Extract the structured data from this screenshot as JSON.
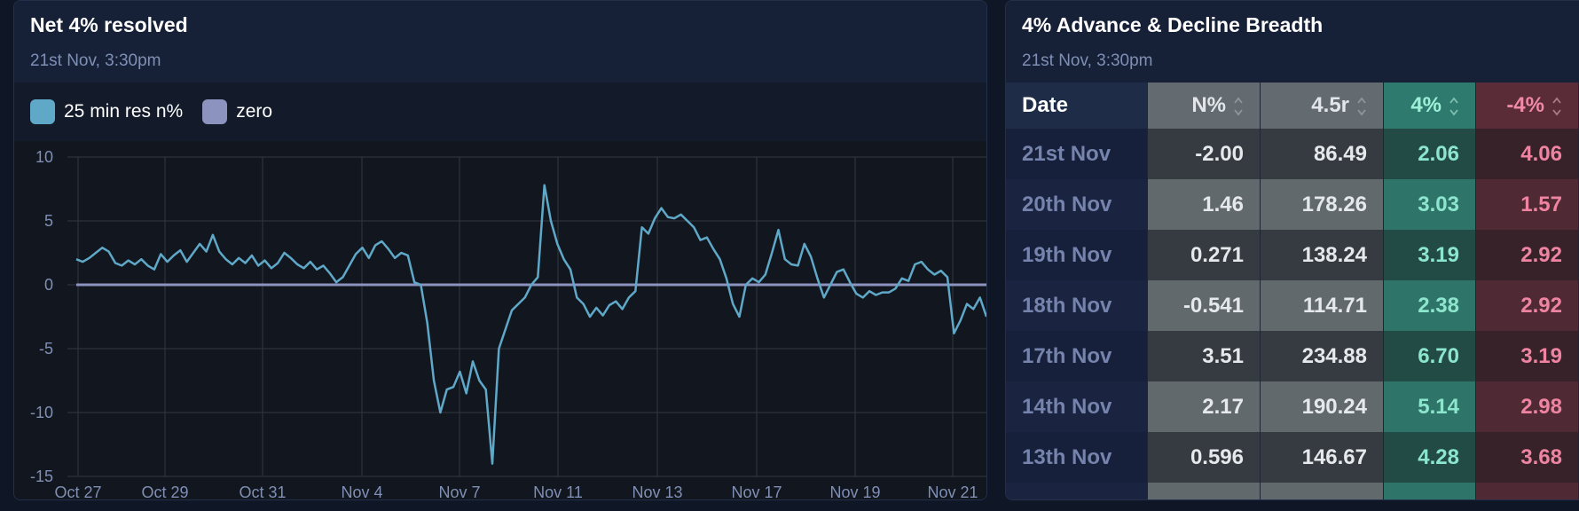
{
  "colors": {
    "line": "#5fa8c8",
    "zero": "#8c93be",
    "grid": "#323843",
    "tick": "#7f8fb5"
  },
  "left_panel": {
    "title": "Net 4% resolved",
    "subtitle": "21st Nov, 3:30pm",
    "legend": [
      {
        "label": "25 min res n%",
        "color": "#5fa8c8"
      },
      {
        "label": "zero",
        "color": "#8c93be"
      }
    ]
  },
  "chart_data": {
    "type": "line",
    "title": "Net 4% resolved",
    "ylim": [
      -15,
      10
    ],
    "yticks": [
      10,
      5,
      0,
      -5,
      -10,
      -15
    ],
    "xticks": [
      "Oct 27",
      "Oct 29",
      "Oct 31",
      "Nov 4",
      "Nov 7",
      "Nov 11",
      "Nov 13",
      "Nov 17",
      "Nov 19",
      "Nov 21"
    ],
    "grid": true,
    "legend_position": "top-left",
    "series": [
      {
        "name": "25 min res n%",
        "values": [
          2.0,
          1.8,
          2.1,
          2.5,
          2.9,
          2.6,
          1.7,
          1.5,
          1.9,
          1.6,
          2.0,
          1.5,
          1.2,
          2.4,
          1.8,
          2.3,
          2.7,
          1.8,
          2.5,
          3.2,
          2.6,
          3.9,
          2.6,
          2.0,
          1.6,
          2.1,
          1.7,
          2.3,
          1.5,
          1.9,
          1.3,
          1.7,
          2.5,
          2.1,
          1.6,
          1.3,
          1.8,
          1.2,
          1.5,
          0.9,
          0.2,
          0.6,
          1.5,
          2.4,
          2.9,
          2.1,
          3.1,
          3.4,
          2.8,
          2.1,
          2.5,
          2.3,
          0.2,
          0.0,
          -3.0,
          -7.5,
          -10.0,
          -8.2,
          -8.0,
          -6.8,
          -8.5,
          -6.0,
          -7.5,
          -8.2,
          -14.0,
          -5.0,
          -3.5,
          -2.0,
          -1.5,
          -1.0,
          0.0,
          0.6,
          7.8,
          5.0,
          3.2,
          2.0,
          1.2,
          -1.0,
          -1.5,
          -2.5,
          -1.8,
          -2.4,
          -1.6,
          -1.3,
          -1.9,
          -1.0,
          -0.5,
          4.5,
          4.0,
          5.2,
          6.0,
          5.3,
          5.2,
          5.5,
          5.0,
          4.5,
          3.5,
          3.7,
          2.8,
          2.0,
          0.5,
          -1.5,
          -2.5,
          0.0,
          0.5,
          0.2,
          0.8,
          2.5,
          4.3,
          2.0,
          1.6,
          1.5,
          3.2,
          2.2,
          0.5,
          -1.0,
          0.0,
          1.0,
          1.2,
          0.2,
          -0.7,
          -1.0,
          -0.5,
          -0.8,
          -0.6,
          -0.6,
          -0.3,
          0.5,
          0.3,
          1.6,
          1.8,
          1.2,
          0.8,
          1.1,
          0.6,
          -3.8,
          -2.8,
          -1.5,
          -1.9,
          -1.0,
          -2.5
        ]
      },
      {
        "name": "zero",
        "values": [
          0,
          0
        ]
      }
    ]
  },
  "right_panel": {
    "title": "4% Advance & Decline Breadth",
    "subtitle": "21st Nov, 3:30pm",
    "columns": [
      "Date",
      "N%",
      "4.5r",
      "4%",
      "-4%"
    ],
    "rows": [
      {
        "date": "21st Nov",
        "n": "-2.00",
        "r": "86.49",
        "adv": "2.06",
        "dec": "4.06"
      },
      {
        "date": "20th Nov",
        "n": "1.46",
        "r": "178.26",
        "adv": "3.03",
        "dec": "1.57"
      },
      {
        "date": "19th Nov",
        "n": "0.271",
        "r": "138.24",
        "adv": "3.19",
        "dec": "2.92"
      },
      {
        "date": "18th Nov",
        "n": "-0.541",
        "r": "114.71",
        "adv": "2.38",
        "dec": "2.92"
      },
      {
        "date": "17th Nov",
        "n": "3.51",
        "r": "234.88",
        "adv": "6.70",
        "dec": "3.19"
      },
      {
        "date": "14th Nov",
        "n": "2.17",
        "r": "190.24",
        "adv": "5.14",
        "dec": "2.98"
      },
      {
        "date": "13th Nov",
        "n": "0.596",
        "r": "146.67",
        "adv": "4.28",
        "dec": "3.68"
      }
    ]
  }
}
